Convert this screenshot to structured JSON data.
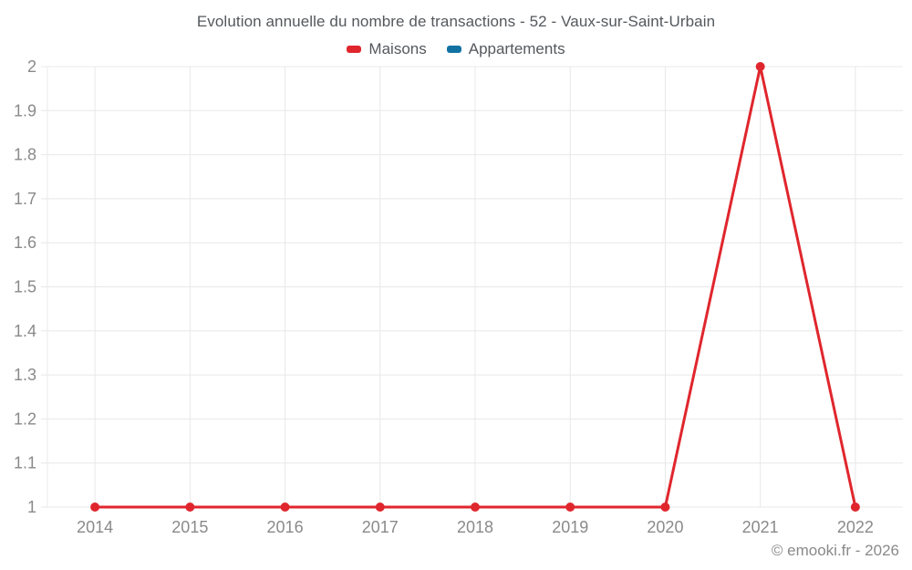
{
  "watermark": "© emooki.fr - 2026",
  "colors": {
    "grid": "#e8e8e8",
    "axis_label": "#8a8a8a",
    "title_text": "#54585c"
  },
  "chart_data": {
    "type": "line",
    "title": "Evolution annuelle du nombre de transactions - 52 - Vaux-sur-Saint-Urbain",
    "categories": [
      "2014",
      "2015",
      "2016",
      "2017",
      "2018",
      "2019",
      "2020",
      "2021",
      "2022"
    ],
    "series": [
      {
        "name": "Maisons",
        "color": "#e0262d",
        "values": [
          1,
          1,
          1,
          1,
          1,
          1,
          1,
          2,
          1
        ]
      },
      {
        "name": "Appartements",
        "color": "#1172a2",
        "values": []
      }
    ],
    "xlabel": "",
    "ylabel": "",
    "ylim": [
      1,
      2
    ],
    "ytick_step": 0.1,
    "ytick_labels": [
      "1",
      "1.1",
      "1.2",
      "1.3",
      "1.4",
      "1.5",
      "1.6",
      "1.7",
      "1.8",
      "1.9",
      "2"
    ],
    "grid": true,
    "legend_position": "top"
  }
}
